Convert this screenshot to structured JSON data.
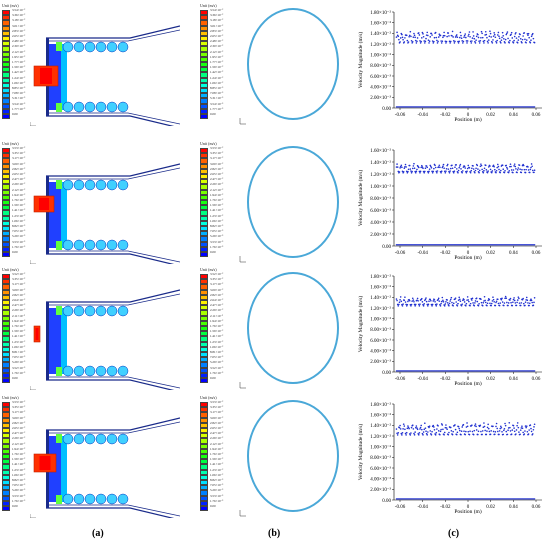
{
  "captions": [
    "(a)",
    "(b)",
    "(c)"
  ],
  "legend_unit": "Unit (m/s)",
  "panels_a": [
    {
      "labels": [
        "3.54×10⁻²",
        "3.36×10⁻²",
        "3.18×10⁻²",
        "3.01×10⁻²",
        "2.83×10⁻²",
        "2.65×10⁻²",
        "2.48×10⁻²",
        "2.30×10⁻²",
        "2.12×10⁻²",
        "1.95×10⁻²",
        "1.77×10⁻²",
        "1.59×10⁻²",
        "1.42×10⁻²",
        "1.24×10⁻²",
        "1.06×10⁻²",
        "8.85×10⁻³",
        "7.08×10⁻³",
        "5.31×10⁻³",
        "3.54×10⁻³",
        "1.77×10⁻³",
        "0.00"
      ]
    },
    {
      "labels": [
        "3.53×10⁻²",
        "3.35×10⁻²",
        "3.17×10⁻²",
        "3.00×10⁻²",
        "2.82×10⁻²",
        "2.65×10⁻²",
        "2.47×10⁻²",
        "2.29×10⁻²",
        "2.12×10⁻²",
        "1.94×10⁻²",
        "1.76×10⁻²",
        "1.59×10⁻²",
        "1.41×10⁻²",
        "1.23×10⁻²",
        "1.06×10⁻²",
        "8.82×10⁻³",
        "7.05×10⁻³",
        "5.29×10⁻³",
        "3.53×10⁻³",
        "1.76×10⁻³",
        "0.00"
      ]
    },
    {
      "labels": [
        "3.52×10⁻²",
        "3.35×10⁻²",
        "3.17×10⁻²",
        "3.00×10⁻²",
        "2.82×10⁻²",
        "2.64×10⁻²",
        "2.47×10⁻²",
        "2.29×10⁻²",
        "2.11×10⁻²",
        "1.94×10⁻²",
        "1.76×10⁻²",
        "1.59×10⁻²",
        "1.41×10⁻²",
        "1.23×10⁻²",
        "1.06×10⁻²",
        "8.81×10⁻³",
        "7.05×10⁻³",
        "5.29×10⁻³",
        "3.52×10⁻³",
        "1.76×10⁻³",
        "0.00"
      ]
    },
    {
      "labels": [
        "3.53×10⁻²",
        "3.35×10⁻²",
        "3.17×10⁻²",
        "3.00×10⁻²",
        "2.82×10⁻²",
        "2.65×10⁻²",
        "2.47×10⁻²",
        "2.29×10⁻²",
        "2.12×10⁻²",
        "1.94×10⁻²",
        "1.76×10⁻²",
        "1.59×10⁻²",
        "1.41×10⁻²",
        "1.23×10⁻²",
        "1.06×10⁻²",
        "8.82×10⁻³",
        "7.05×10⁻³",
        "5.29×10⁻³",
        "3.53×10⁻³",
        "1.76×10⁻³",
        "0.00"
      ]
    }
  ],
  "panels_b": [
    {
      "labels": [
        "3.54×10⁻²",
        "3.36×10⁻²",
        "3.18×10⁻²",
        "3.01×10⁻²",
        "2.83×10⁻²",
        "2.65×10⁻²",
        "2.48×10⁻²",
        "2.30×10⁻²",
        "2.12×10⁻²",
        "1.95×10⁻²",
        "1.77×10⁻²",
        "1.59×10⁻²",
        "1.42×10⁻²",
        "1.24×10⁻²",
        "1.06×10⁻²",
        "8.85×10⁻³",
        "7.08×10⁻³",
        "5.31×10⁻³",
        "3.54×10⁻³",
        "1.77×10⁻³",
        "0.00"
      ]
    },
    {
      "labels": [
        "3.53×10⁻²",
        "3.35×10⁻²",
        "3.17×10⁻²",
        "3.00×10⁻²",
        "2.82×10⁻²",
        "2.65×10⁻²",
        "2.47×10⁻²",
        "2.29×10⁻²",
        "2.12×10⁻²",
        "1.94×10⁻²",
        "1.76×10⁻²",
        "1.59×10⁻²",
        "1.41×10⁻²",
        "1.23×10⁻²",
        "1.06×10⁻²",
        "8.82×10⁻³",
        "7.05×10⁻³",
        "5.29×10⁻³",
        "3.53×10⁻³",
        "1.76×10⁻³",
        "0.00"
      ]
    },
    {
      "labels": [
        "3.52×10⁻²",
        "3.35×10⁻²",
        "3.17×10⁻²",
        "3.00×10⁻²",
        "2.82×10⁻²",
        "2.64×10⁻²",
        "2.47×10⁻²",
        "2.29×10⁻²",
        "2.11×10⁻²",
        "1.94×10⁻²",
        "1.76×10⁻²",
        "1.59×10⁻²",
        "1.41×10⁻²",
        "1.23×10⁻²",
        "1.06×10⁻²",
        "8.81×10⁻³",
        "7.05×10⁻³",
        "5.29×10⁻³",
        "3.52×10⁻³",
        "1.76×10⁻³",
        "0.00"
      ]
    },
    {
      "labels": [
        "3.53×10⁻²",
        "3.35×10⁻²",
        "3.17×10⁻²",
        "3.00×10⁻²",
        "2.82×10⁻²",
        "2.65×10⁻²",
        "2.47×10⁻²",
        "2.29×10⁻²",
        "2.12×10⁻²",
        "1.94×10⁻²",
        "1.76×10⁻²",
        "1.59×10⁻²",
        "1.41×10⁻²",
        "1.23×10⁻²",
        "1.06×10⁻²",
        "8.82×10⁻³",
        "7.05×10⁻³",
        "5.29×10⁻³",
        "3.53×10⁻³",
        "1.76×10⁻³",
        "0.00"
      ]
    }
  ],
  "legend_colors": [
    "#ff0000",
    "#ff3000",
    "#ff6000",
    "#ff9000",
    "#ffc000",
    "#fff000",
    "#d8ff00",
    "#a8ff00",
    "#78ff00",
    "#48ff00",
    "#18ff10",
    "#00ff40",
    "#00ff80",
    "#00ffb0",
    "#00ffe0",
    "#00e0ff",
    "#00b0ff",
    "#0080ff",
    "#0050ff",
    "#0020ff",
    "#0000ff"
  ],
  "chart_data": [
    {
      "type": "scatter",
      "ylabel": "Velocity Magnitude (m/s)",
      "xlabel": "Position (m)",
      "x_ticks": [
        "-0.06",
        "-0.04",
        "-0.02",
        "0",
        "0.02",
        "0.04",
        "0.06"
      ],
      "y_ticks": [
        "1.80×10⁻²",
        "1.60×10⁻²",
        "1.40×10⁻²",
        "1.20×10⁻²",
        "1.00×10⁻²",
        "8.00×10⁻³",
        "6.00×10⁻³",
        "4.00×10⁻³",
        "2.00×10⁻³",
        "0.00"
      ],
      "xlim": [
        -0.06,
        0.06
      ],
      "ylim": [
        0,
        0.018
      ],
      "band": [
        0.0122,
        0.0145
      ]
    },
    {
      "type": "scatter",
      "ylabel": "Velocity Magnitude (m/s)",
      "xlabel": "Position (m)",
      "x_ticks": [
        "-0.06",
        "-0.04",
        "-0.02",
        "0",
        "0.02",
        "0.04",
        "0.06"
      ],
      "y_ticks": [
        "1.60×10⁻²",
        "1.40×10⁻²",
        "1.20×10⁻²",
        "1.00×10⁻²",
        "8.00×10⁻³",
        "6.00×10⁻³",
        "4.00×10⁻³",
        "2.00×10⁻³",
        "0.00"
      ],
      "xlim": [
        -0.06,
        0.06
      ],
      "ylim": [
        0,
        0.016
      ],
      "band": [
        0.0122,
        0.0138
      ]
    },
    {
      "type": "scatter",
      "ylabel": "Velocity Magnitude (m/s)",
      "xlabel": "Position (m)",
      "x_ticks": [
        "-0.06",
        "-0.04",
        "-0.02",
        "0",
        "0.02",
        "0.04",
        "0.06"
      ],
      "y_ticks": [
        "1.80×10⁻²",
        "1.60×10⁻²",
        "1.40×10⁻²",
        "1.20×10⁻²",
        "1.00×10⁻²",
        "8.00×10⁻³",
        "6.00×10⁻³",
        "4.00×10⁻³",
        "2.00×10⁻³",
        "0.00"
      ],
      "xlim": [
        -0.06,
        0.06
      ],
      "ylim": [
        0,
        0.018
      ],
      "band": [
        0.0124,
        0.0142
      ]
    },
    {
      "type": "scatter",
      "ylabel": "Velocity Magnitude (m/s)",
      "xlabel": "Position (m)",
      "x_ticks": [
        "-0.06",
        "-0.04",
        "-0.02",
        "0",
        "0.02",
        "0.04",
        "0.06"
      ],
      "y_ticks": [
        "1.80×10⁻²",
        "1.60×10⁻²",
        "1.40×10⁻²",
        "1.20×10⁻²",
        "1.00×10⁻²",
        "8.00×10⁻³",
        "6.00×10⁻³",
        "4.00×10⁻³",
        "2.00×10⁻³",
        "0.00"
      ],
      "xlim": [
        -0.06,
        0.06
      ],
      "ylim": [
        0,
        0.018
      ],
      "band": [
        0.0122,
        0.0145
      ]
    }
  ]
}
